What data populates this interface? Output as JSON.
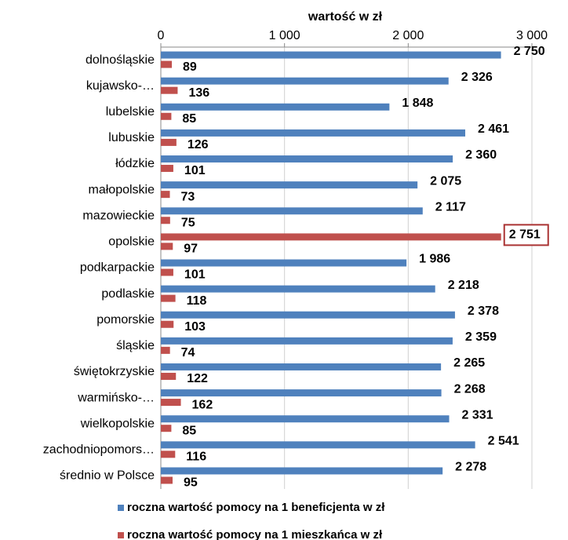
{
  "chart_data": {
    "type": "barh",
    "xlabel": "wartość  w zł",
    "categories": [
      "dolnośląskie",
      "kujawsko-…",
      "lubelskie",
      "lubuskie",
      "łódzkie",
      "małopolskie",
      "mazowieckie",
      "opolskie",
      "podkarpackie",
      "podlaskie",
      "pomorskie",
      "śląskie",
      "świętokrzyskie",
      "warmińsko-…",
      "wielkopolskie",
      "zachodniopomors…",
      "średnio w Polsce"
    ],
    "series": [
      {
        "name": "roczna wartość pomocy na 1 beneficjenta w zł",
        "color": "#4f81bd",
        "colors": [
          "#4f81bd",
          "#4f81bd",
          "#4f81bd",
          "#4f81bd",
          "#4f81bd",
          "#4f81bd",
          "#4f81bd",
          "#c0504d",
          "#4f81bd",
          "#4f81bd",
          "#4f81bd",
          "#4f81bd",
          "#4f81bd",
          "#4f81bd",
          "#4f81bd",
          "#4f81bd",
          "#4f81bd"
        ],
        "values": [
          2750,
          2326,
          1848,
          2461,
          2360,
          2075,
          2117,
          2751,
          1986,
          2218,
          2378,
          2359,
          2265,
          2268,
          2331,
          2541,
          2278
        ],
        "value_labels": [
          "2 750",
          "2 326",
          "1 848",
          "2 461",
          "2 360",
          "2 075",
          "2 117",
          "2 751",
          "1 986",
          "2 218",
          "2 378",
          "2 359",
          "2 265",
          "2 268",
          "2 331",
          "2 541",
          "2 278"
        ]
      },
      {
        "name": "roczna wartość pomocy na 1 mieszkańca w zł",
        "color": "#c0504d",
        "values": [
          89,
          136,
          85,
          126,
          101,
          73,
          75,
          97,
          101,
          118,
          103,
          74,
          122,
          162,
          85,
          116,
          95
        ]
      }
    ],
    "xlim": [
      0,
      3000
    ],
    "xticks": [
      0,
      {
        "value": 1000,
        "label": "1 000"
      },
      {
        "value": 2000,
        "label": "2 000"
      },
      {
        "value": 3000,
        "label": "3 000"
      }
    ],
    "grid": true
  }
}
